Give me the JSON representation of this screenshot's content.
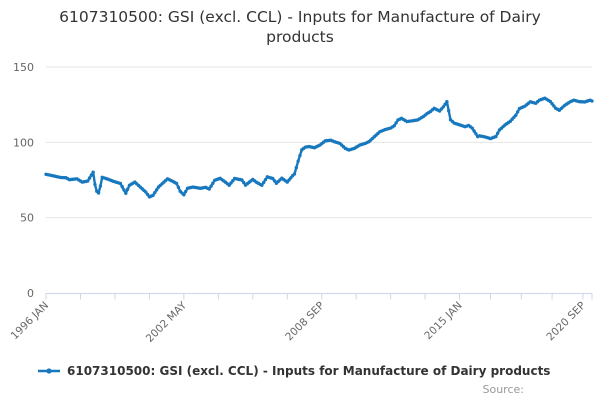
{
  "title": {
    "text": "6107310500: GSI (excl. CCL) - Inputs for Manufacture of Dairy products"
  },
  "legend": {
    "label": "6107310500: GSI (excl. CCL) - Inputs for Manufacture of Dairy products"
  },
  "source_label": "Source:",
  "colors": {
    "line": "#1778be",
    "grid": "#e6e6e6",
    "axis": "#ccd6eb",
    "tick_label": "#666666",
    "title_text": "#333333",
    "legend_text": "#333333",
    "source_text": "#999999",
    "background": "#ffffff"
  },
  "chart_data": {
    "type": "line",
    "title": "6107310500: GSI (excl. CCL) - Inputs for Manufacture of Dairy products",
    "xlabel": "",
    "ylabel": "",
    "ylim": [
      0,
      150
    ],
    "y_ticks": [
      0,
      50,
      100,
      150
    ],
    "grid": "horizontal",
    "legend_position": "bottom",
    "x_unit": "months since 1996 JAN",
    "x_range_months": [
      0,
      301
    ],
    "x_tick_labels": [
      {
        "month": 0,
        "label": "1996 JAN"
      },
      {
        "month": 76,
        "label": "2002 MAY"
      },
      {
        "month": 152,
        "label": "2008 SEP"
      },
      {
        "month": 228,
        "label": "2015 JAN"
      },
      {
        "month": 296,
        "label": "2020 SEP"
      }
    ],
    "minor_ticks_per_label_gap": 4,
    "series": [
      {
        "name": "6107310500: GSI (excl. CCL) - Inputs for Manufacture of Dairy products",
        "points": [
          [
            0,
            78.8
          ],
          [
            2,
            78.3
          ],
          [
            5,
            77.5
          ],
          [
            8,
            76.7
          ],
          [
            11,
            76.5
          ],
          [
            13,
            75.2
          ],
          [
            17,
            75.8
          ],
          [
            20,
            73.6
          ],
          [
            23,
            74.3
          ],
          [
            26,
            80.2
          ],
          [
            27,
            72.0
          ],
          [
            28,
            67.5
          ],
          [
            29,
            66.4
          ],
          [
            30,
            71.0
          ],
          [
            31,
            76.8
          ],
          [
            34,
            75.6
          ],
          [
            37,
            74.2
          ],
          [
            41,
            72.7
          ],
          [
            44,
            66.2
          ],
          [
            46,
            71.5
          ],
          [
            49,
            73.6
          ],
          [
            52,
            70.3
          ],
          [
            55,
            67.0
          ],
          [
            57,
            63.8
          ],
          [
            59,
            64.8
          ],
          [
            62,
            70.3
          ],
          [
            64,
            72.5
          ],
          [
            67,
            75.8
          ],
          [
            70,
            74.0
          ],
          [
            72,
            72.7
          ],
          [
            74,
            67.5
          ],
          [
            76,
            65.2
          ],
          [
            78,
            69.5
          ],
          [
            81,
            70.3
          ],
          [
            85,
            69.5
          ],
          [
            88,
            70.1
          ],
          [
            90,
            69.0
          ],
          [
            93,
            74.8
          ],
          [
            96,
            76.1
          ],
          [
            99,
            73.5
          ],
          [
            101,
            71.5
          ],
          [
            104,
            76.0
          ],
          [
            108,
            75.0
          ],
          [
            110,
            71.6
          ],
          [
            114,
            75.4
          ],
          [
            116,
            73.5
          ],
          [
            119,
            71.5
          ],
          [
            122,
            77.1
          ],
          [
            125,
            76.0
          ],
          [
            127,
            72.8
          ],
          [
            130,
            76.2
          ],
          [
            133,
            73.6
          ],
          [
            136,
            77.9
          ],
          [
            137,
            79.0
          ],
          [
            139,
            87.5
          ],
          [
            141,
            95.0
          ],
          [
            143,
            96.8
          ],
          [
            145,
            97.2
          ],
          [
            148,
            96.4
          ],
          [
            151,
            98.2
          ],
          [
            154,
            101.0
          ],
          [
            157,
            101.4
          ],
          [
            159,
            100.4
          ],
          [
            162,
            99.3
          ],
          [
            165,
            96.0
          ],
          [
            167,
            94.9
          ],
          [
            170,
            96.0
          ],
          [
            173,
            98.2
          ],
          [
            176,
            99.3
          ],
          [
            178,
            100.4
          ],
          [
            181,
            103.7
          ],
          [
            184,
            107.0
          ],
          [
            187,
            108.5
          ],
          [
            190,
            109.5
          ],
          [
            192,
            111.0
          ],
          [
            194,
            114.8
          ],
          [
            196,
            115.9
          ],
          [
            199,
            113.8
          ],
          [
            202,
            114.3
          ],
          [
            205,
            114.9
          ],
          [
            208,
            117.1
          ],
          [
            210,
            119.0
          ],
          [
            212,
            120.5
          ],
          [
            214,
            122.6
          ],
          [
            217,
            120.8
          ],
          [
            219,
            123.5
          ],
          [
            221,
            127.0
          ],
          [
            223,
            115.0
          ],
          [
            225,
            112.8
          ],
          [
            228,
            111.6
          ],
          [
            231,
            110.4
          ],
          [
            233,
            111.2
          ],
          [
            235,
            109.4
          ],
          [
            238,
            103.8
          ],
          [
            239,
            104.3
          ],
          [
            242,
            103.6
          ],
          [
            245,
            102.5
          ],
          [
            248,
            103.8
          ],
          [
            250,
            108.2
          ],
          [
            253,
            111.5
          ],
          [
            256,
            114.0
          ],
          [
            259,
            118.0
          ],
          [
            261,
            122.4
          ],
          [
            264,
            124.0
          ],
          [
            267,
            126.9
          ],
          [
            270,
            125.9
          ],
          [
            272,
            128.0
          ],
          [
            275,
            129.3
          ],
          [
            278,
            127.1
          ],
          [
            281,
            122.6
          ],
          [
            283,
            121.3
          ],
          [
            286,
            124.6
          ],
          [
            289,
            126.9
          ],
          [
            291,
            128.0
          ],
          [
            294,
            127.0
          ],
          [
            297,
            126.8
          ],
          [
            300,
            128.0
          ],
          [
            301,
            127.4
          ]
        ]
      }
    ]
  }
}
